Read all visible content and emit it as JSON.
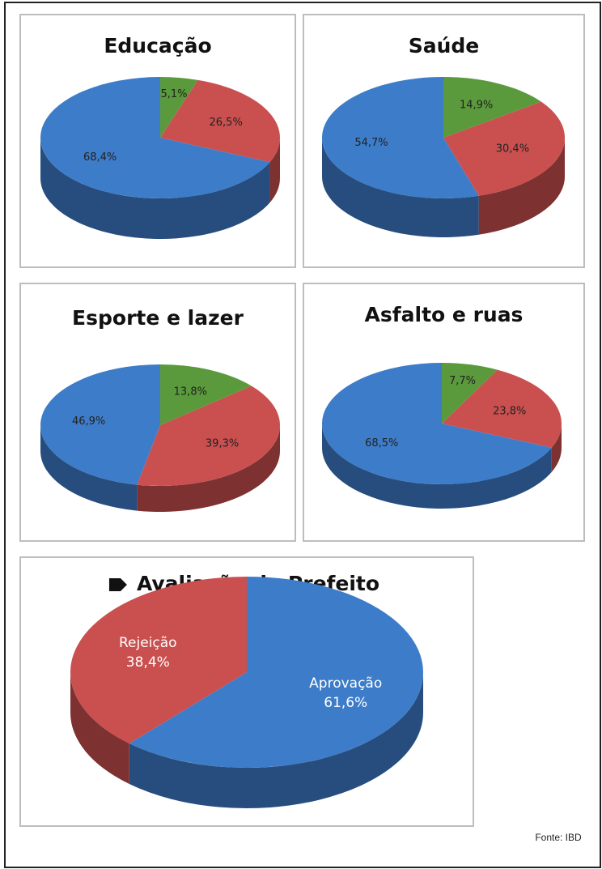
{
  "chart_data": [
    {
      "type": "pie",
      "title": "Educação",
      "values": [
        5.1,
        26.5,
        68.4
      ],
      "value_labels": [
        "5,1%",
        "26,5%",
        "68,4%"
      ],
      "colors": [
        "#5b9a3c",
        "#c9504f",
        "#3d7cc9"
      ]
    },
    {
      "type": "pie",
      "title": "Saúde",
      "values": [
        14.9,
        30.4,
        54.7
      ],
      "value_labels": [
        "14,9%",
        "30,4%",
        "54,7%"
      ],
      "colors": [
        "#5b9a3c",
        "#c9504f",
        "#3d7cc9"
      ]
    },
    {
      "type": "pie",
      "title": "Esporte e lazer",
      "values": [
        13.8,
        39.3,
        46.9
      ],
      "value_labels": [
        "13,8%",
        "39,3%",
        "46,9%"
      ],
      "colors": [
        "#5b9a3c",
        "#c9504f",
        "#3d7cc9"
      ]
    },
    {
      "type": "pie",
      "title": "Asfalto e ruas",
      "values": [
        7.7,
        23.8,
        68.5
      ],
      "value_labels": [
        "7,7%",
        "23,8%",
        "68,5%"
      ],
      "colors": [
        "#5b9a3c",
        "#c9504f",
        "#3d7cc9"
      ]
    },
    {
      "type": "pie",
      "title": "Avaliação do Prefeito",
      "categories": [
        "Aprovação",
        "Rejeição"
      ],
      "values": [
        61.6,
        38.4
      ],
      "value_labels": [
        "61,6%",
        "38,4%"
      ],
      "colors": [
        "#3d7cc9",
        "#c9504f"
      ]
    }
  ],
  "source": "Fonte: IBD"
}
